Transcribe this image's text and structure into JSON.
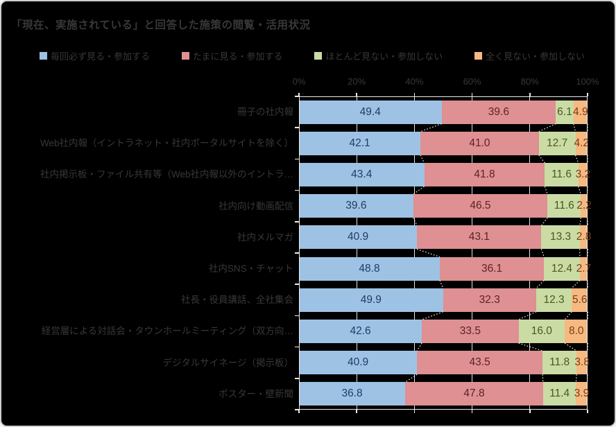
{
  "title": "「現在、実施されている」と回答した施策の閲覧・活用状況",
  "panel": {
    "background_color": "#000000",
    "frame_border_color": "#cfcfcf",
    "text_color": "#383838",
    "axis_line_color": "#ededed"
  },
  "legend": [
    {
      "label": "毎回必ず見る・参加する",
      "color": "#9EC2E4"
    },
    {
      "label": "たまに見る・参加する",
      "color": "#DE9092"
    },
    {
      "label": "ほとんど見ない・参加しない",
      "color": "#CADCA4"
    },
    {
      "label": "全く見ない・参加しない",
      "color": "#F5B981"
    }
  ],
  "chart_data": {
    "type": "bar",
    "orientation": "horizontal-stacked",
    "title": "「現在、実施されている」と回答した施策の閲覧・活用状況",
    "xlabel": "",
    "ylabel": "",
    "xlim": [
      0,
      100
    ],
    "x_ticks": [
      "0%",
      "20%",
      "40%",
      "60%",
      "80%",
      "100%"
    ],
    "grid": true,
    "legend_position": "top",
    "value_format": "one-decimal-percent",
    "categories": [
      "冊子の社内報",
      "Web社内報（イントラネット・社内ポータルサイトを除く）",
      "社内掲示板・ファイル共有等（Web社内報以外のイントラ…",
      "社内向け動画配信",
      "社内メルマガ",
      "社内SNS・チャット",
      "社長・役員講話、全社集会",
      "経営層による対話会・タウンホールミーティング（双方向…",
      "デジタルサイネージ（掲示板）",
      "ポスター・壁新聞"
    ],
    "series": [
      {
        "name": "毎回必ず見る・参加する",
        "color": "#9EC2E4",
        "label_color": "#1F3C66",
        "values": [
          49.4,
          42.1,
          43.4,
          39.6,
          40.9,
          48.8,
          49.9,
          42.6,
          40.9,
          36.8
        ]
      },
      {
        "name": "たまに見る・参加する",
        "color": "#DE9092",
        "label_color": "#5E2223",
        "values": [
          39.6,
          41.0,
          41.8,
          46.5,
          43.1,
          36.1,
          32.3,
          33.5,
          43.5,
          47.8
        ]
      },
      {
        "name": "ほとんど見ない・参加しない",
        "color": "#CADCA4",
        "label_color": "#48591F",
        "values": [
          6.1,
          12.7,
          11.6,
          11.6,
          13.3,
          12.4,
          12.3,
          16.0,
          11.8,
          11.4
        ]
      },
      {
        "name": "全く見ない・参加しない",
        "color": "#F5B981",
        "label_color": "#7C3D12",
        "values": [
          4.9,
          4.2,
          3.2,
          2.2,
          2.8,
          2.7,
          5.6,
          8.0,
          3.8,
          3.9
        ]
      }
    ]
  }
}
